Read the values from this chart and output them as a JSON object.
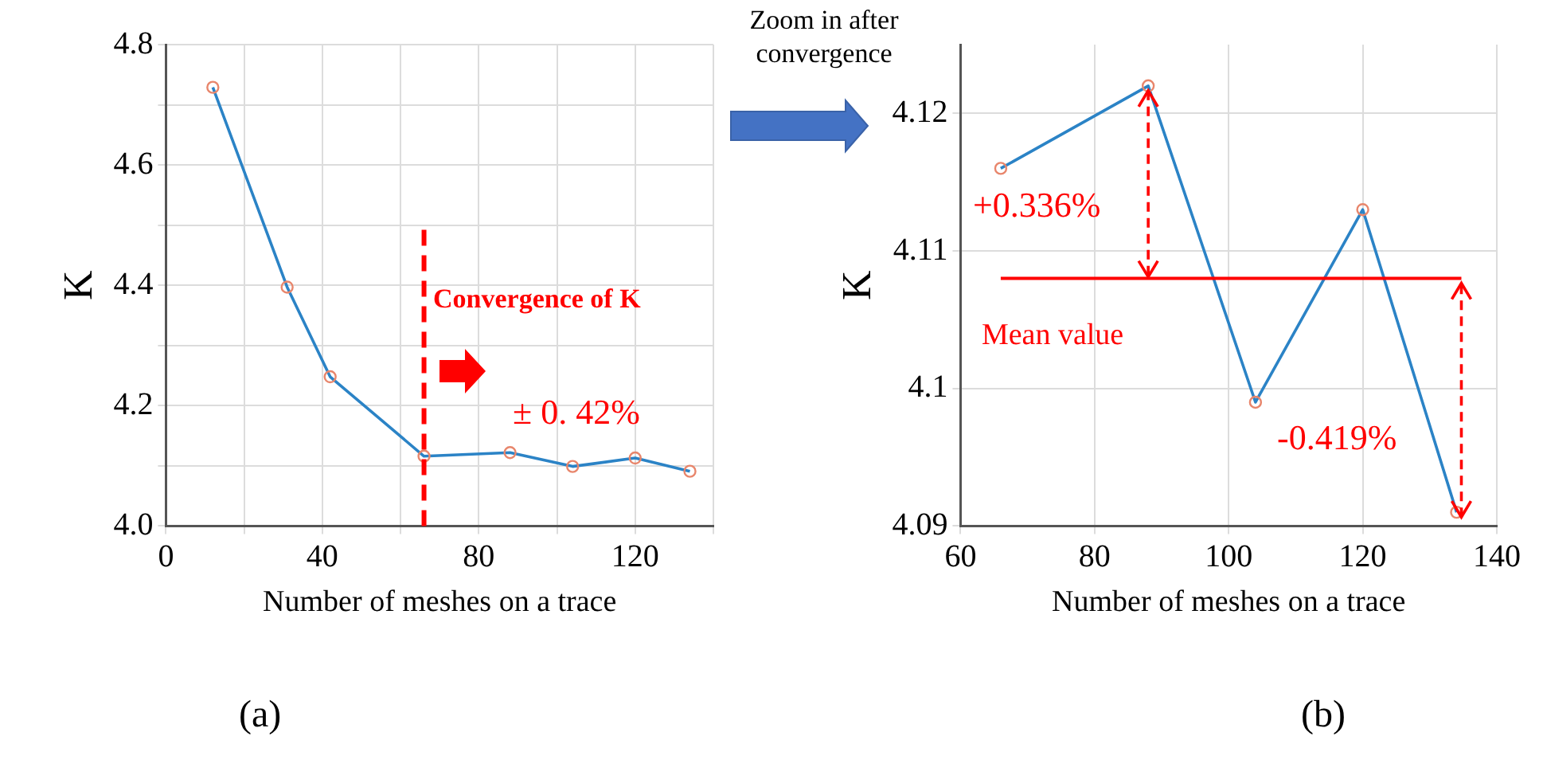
{
  "chart_data": [
    {
      "type": "line",
      "xlabel": "Number of meshes on a trace",
      "ylabel": "K",
      "x": [
        12,
        31,
        42,
        66,
        88,
        104,
        120,
        134
      ],
      "series": [
        {
          "color": "#2b83c6",
          "values": [
            4.729,
            4.397,
            4.248,
            4.116,
            4.122,
            4.099,
            4.113,
            4.091
          ]
        }
      ],
      "xlim": [
        0,
        140
      ],
      "xticks": [
        0,
        {
          "value": 20,
          "label": null
        },
        40,
        {
          "value": 60,
          "label": null
        },
        80,
        {
          "value": 100,
          "label": null
        },
        120,
        {
          "value": 140,
          "label": null
        }
      ],
      "ylim": [
        4.0,
        4.8
      ],
      "yticks": [
        {
          "value": 4.0,
          "label": "4.0"
        },
        {
          "value": 4.1,
          "label": null
        },
        {
          "value": 4.2,
          "label": "4.2"
        },
        {
          "value": 4.3,
          "label": null
        },
        {
          "value": 4.4,
          "label": "4.4"
        },
        {
          "value": 4.5,
          "label": null
        },
        {
          "value": 4.6,
          "label": "4.6"
        },
        {
          "value": 4.7,
          "label": null
        },
        {
          "value": 4.8,
          "label": "4.8"
        }
      ],
      "grid": true,
      "marker": "circle",
      "line_style": "solid",
      "legend": false,
      "ref_lines": [
        {
          "axis": "x",
          "value": 66,
          "color": "#ff0000",
          "line_style": "dashed"
        }
      ],
      "annotations": [
        "Convergence of K",
        "± 0. 42%",
        "(a)"
      ]
    },
    {
      "type": "line",
      "xlabel": "Number of meshes on a trace",
      "ylabel": "K",
      "x": [
        66,
        88,
        104,
        120,
        134
      ],
      "series": [
        {
          "color": "#2b83c6",
          "values": [
            4.116,
            4.122,
            4.099,
            4.113,
            4.091
          ]
        }
      ],
      "xlim": [
        60,
        140
      ],
      "xticks": [
        60,
        80,
        100,
        120,
        140
      ],
      "ylim": [
        4.09,
        4.125
      ],
      "yticks": [
        4.09,
        4.1,
        4.11,
        4.12
      ],
      "grid": true,
      "marker": "circle",
      "line_style": "solid",
      "legend": false,
      "ref_lines": [
        {
          "axis": "y",
          "value": 4.108,
          "label": "Mean value",
          "color": "#ff0000",
          "line_style": "solid"
        }
      ],
      "annotations": [
        "Zoom in after convergence",
        "+0.336%",
        "-0.419%",
        "(b)"
      ]
    }
  ]
}
